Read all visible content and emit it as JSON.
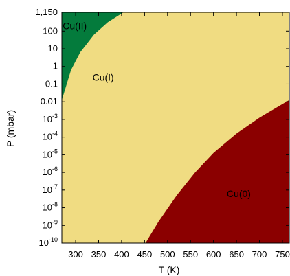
{
  "chart_data": {
    "type": "area",
    "xlabel": "T (K)",
    "ylabel": "P (mbar)",
    "xlim": [
      270,
      765
    ],
    "ylim_log10": [
      -10,
      3.0607
    ],
    "y_scale": "log",
    "grid": false,
    "legend": "none",
    "x_ticks": [
      {
        "value": 300,
        "label": "300"
      },
      {
        "value": 350,
        "label": "350"
      },
      {
        "value": 400,
        "label": "400"
      },
      {
        "value": 450,
        "label": "450"
      },
      {
        "value": 500,
        "label": "500"
      },
      {
        "value": 550,
        "label": "550"
      },
      {
        "value": 600,
        "label": "600"
      },
      {
        "value": 650,
        "label": "650"
      },
      {
        "value": 700,
        "label": "700"
      },
      {
        "value": 750,
        "label": "750"
      }
    ],
    "y_ticks": [
      {
        "log10": 3.0607,
        "base": "1,150",
        "exp": ""
      },
      {
        "log10": 2,
        "base": "100",
        "exp": ""
      },
      {
        "log10": 1,
        "base": "10",
        "exp": ""
      },
      {
        "log10": 0,
        "base": "1",
        "exp": ""
      },
      {
        "log10": -1,
        "base": "0.1",
        "exp": ""
      },
      {
        "log10": -2,
        "base": "0.01",
        "exp": ""
      },
      {
        "log10": -3,
        "base": "10",
        "exp": "-3"
      },
      {
        "log10": -4,
        "base": "10",
        "exp": "-4"
      },
      {
        "log10": -5,
        "base": "10",
        "exp": "-5"
      },
      {
        "log10": -6,
        "base": "10",
        "exp": "-6"
      },
      {
        "log10": -7,
        "base": "10",
        "exp": "-7"
      },
      {
        "log10": -8,
        "base": "10",
        "exp": "-8"
      },
      {
        "log10": -9,
        "base": "10",
        "exp": "-9"
      },
      {
        "log10": -10,
        "base": "10",
        "exp": "-10"
      }
    ],
    "regions": [
      {
        "name": "Cu(I)",
        "color": "#f0dc82",
        "label_at": {
          "T": 360,
          "log10P": -0.8
        }
      },
      {
        "name": "Cu(II)",
        "color": "#047b3c",
        "label_at": {
          "T": 298,
          "log10P": 2.1
        }
      },
      {
        "name": "Cu(0)",
        "color": "#8b0000",
        "label_at": {
          "T": 655,
          "log10P": -7.4
        }
      }
    ],
    "boundaries": {
      "CuII_CuI": [
        {
          "T": 270,
          "log10P": -1.9
        },
        {
          "T": 290,
          "log10P": -0.2
        },
        {
          "T": 310,
          "log10P": 0.8
        },
        {
          "T": 340,
          "log10P": 1.8
        },
        {
          "T": 370,
          "log10P": 2.5
        },
        {
          "T": 404,
          "log10P": 3.0607
        }
      ],
      "CuI_Cu0": [
        {
          "T": 452,
          "log10P": -10
        },
        {
          "T": 480,
          "log10P": -8.8
        },
        {
          "T": 520,
          "log10P": -7.3
        },
        {
          "T": 560,
          "log10P": -6.0
        },
        {
          "T": 600,
          "log10P": -4.9
        },
        {
          "T": 650,
          "log10P": -3.8
        },
        {
          "T": 700,
          "log10P": -2.9
        },
        {
          "T": 765,
          "log10P": -1.9
        }
      ]
    }
  }
}
